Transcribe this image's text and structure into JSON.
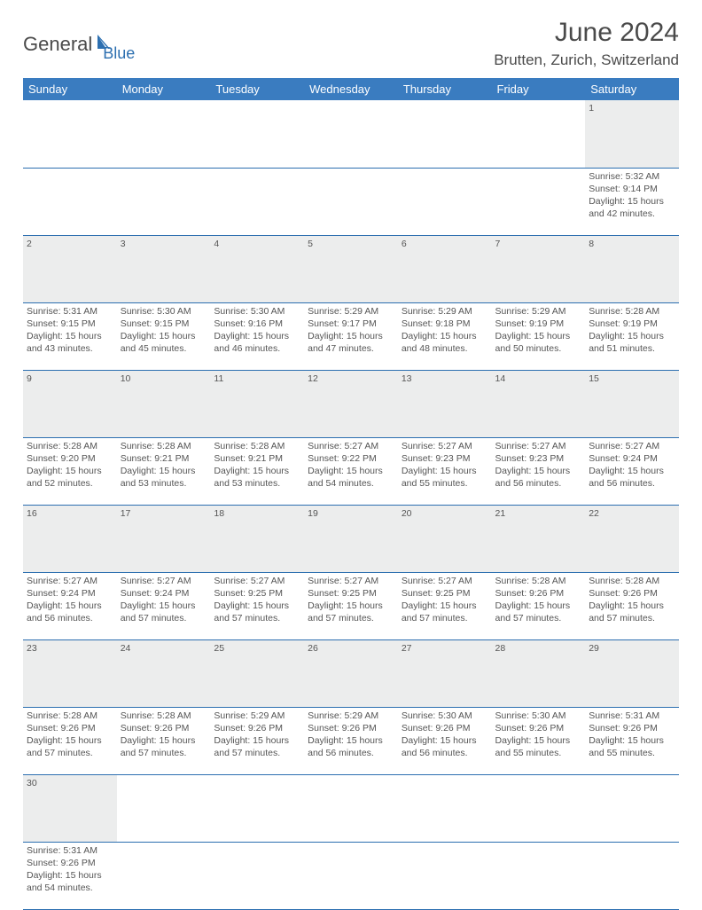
{
  "logo": {
    "part1": "General",
    "part2": "Blue"
  },
  "title": "June 2024",
  "location": "Brutten, Zurich, Switzerland",
  "colors": {
    "header_bg": "#3a7cc0",
    "header_text": "#ffffff",
    "daynum_bg": "#eceded",
    "border": "#2c6fb0",
    "text": "#555555",
    "logo_gray": "#4a4a4a",
    "logo_blue": "#2c6fb0"
  },
  "layout": {
    "first_weekday_index": 6,
    "days_in_month": 30,
    "cols": 7
  },
  "weekdays": [
    "Sunday",
    "Monday",
    "Tuesday",
    "Wednesday",
    "Thursday",
    "Friday",
    "Saturday"
  ],
  "days": {
    "1": {
      "sunrise": "5:32 AM",
      "sunset": "9:14 PM",
      "daylight": "15 hours and 42 minutes."
    },
    "2": {
      "sunrise": "5:31 AM",
      "sunset": "9:15 PM",
      "daylight": "15 hours and 43 minutes."
    },
    "3": {
      "sunrise": "5:30 AM",
      "sunset": "9:15 PM",
      "daylight": "15 hours and 45 minutes."
    },
    "4": {
      "sunrise": "5:30 AM",
      "sunset": "9:16 PM",
      "daylight": "15 hours and 46 minutes."
    },
    "5": {
      "sunrise": "5:29 AM",
      "sunset": "9:17 PM",
      "daylight": "15 hours and 47 minutes."
    },
    "6": {
      "sunrise": "5:29 AM",
      "sunset": "9:18 PM",
      "daylight": "15 hours and 48 minutes."
    },
    "7": {
      "sunrise": "5:29 AM",
      "sunset": "9:19 PM",
      "daylight": "15 hours and 50 minutes."
    },
    "8": {
      "sunrise": "5:28 AM",
      "sunset": "9:19 PM",
      "daylight": "15 hours and 51 minutes."
    },
    "9": {
      "sunrise": "5:28 AM",
      "sunset": "9:20 PM",
      "daylight": "15 hours and 52 minutes."
    },
    "10": {
      "sunrise": "5:28 AM",
      "sunset": "9:21 PM",
      "daylight": "15 hours and 53 minutes."
    },
    "11": {
      "sunrise": "5:28 AM",
      "sunset": "9:21 PM",
      "daylight": "15 hours and 53 minutes."
    },
    "12": {
      "sunrise": "5:27 AM",
      "sunset": "9:22 PM",
      "daylight": "15 hours and 54 minutes."
    },
    "13": {
      "sunrise": "5:27 AM",
      "sunset": "9:23 PM",
      "daylight": "15 hours and 55 minutes."
    },
    "14": {
      "sunrise": "5:27 AM",
      "sunset": "9:23 PM",
      "daylight": "15 hours and 56 minutes."
    },
    "15": {
      "sunrise": "5:27 AM",
      "sunset": "9:24 PM",
      "daylight": "15 hours and 56 minutes."
    },
    "16": {
      "sunrise": "5:27 AM",
      "sunset": "9:24 PM",
      "daylight": "15 hours and 56 minutes."
    },
    "17": {
      "sunrise": "5:27 AM",
      "sunset": "9:24 PM",
      "daylight": "15 hours and 57 minutes."
    },
    "18": {
      "sunrise": "5:27 AM",
      "sunset": "9:25 PM",
      "daylight": "15 hours and 57 minutes."
    },
    "19": {
      "sunrise": "5:27 AM",
      "sunset": "9:25 PM",
      "daylight": "15 hours and 57 minutes."
    },
    "20": {
      "sunrise": "5:27 AM",
      "sunset": "9:25 PM",
      "daylight": "15 hours and 57 minutes."
    },
    "21": {
      "sunrise": "5:28 AM",
      "sunset": "9:26 PM",
      "daylight": "15 hours and 57 minutes."
    },
    "22": {
      "sunrise": "5:28 AM",
      "sunset": "9:26 PM",
      "daylight": "15 hours and 57 minutes."
    },
    "23": {
      "sunrise": "5:28 AM",
      "sunset": "9:26 PM",
      "daylight": "15 hours and 57 minutes."
    },
    "24": {
      "sunrise": "5:28 AM",
      "sunset": "9:26 PM",
      "daylight": "15 hours and 57 minutes."
    },
    "25": {
      "sunrise": "5:29 AM",
      "sunset": "9:26 PM",
      "daylight": "15 hours and 57 minutes."
    },
    "26": {
      "sunrise": "5:29 AM",
      "sunset": "9:26 PM",
      "daylight": "15 hours and 56 minutes."
    },
    "27": {
      "sunrise": "5:30 AM",
      "sunset": "9:26 PM",
      "daylight": "15 hours and 56 minutes."
    },
    "28": {
      "sunrise": "5:30 AM",
      "sunset": "9:26 PM",
      "daylight": "15 hours and 55 minutes."
    },
    "29": {
      "sunrise": "5:31 AM",
      "sunset": "9:26 PM",
      "daylight": "15 hours and 55 minutes."
    },
    "30": {
      "sunrise": "5:31 AM",
      "sunset": "9:26 PM",
      "daylight": "15 hours and 54 minutes."
    }
  },
  "labels": {
    "sunrise": "Sunrise: ",
    "sunset": "Sunset: ",
    "daylight": "Daylight: "
  }
}
